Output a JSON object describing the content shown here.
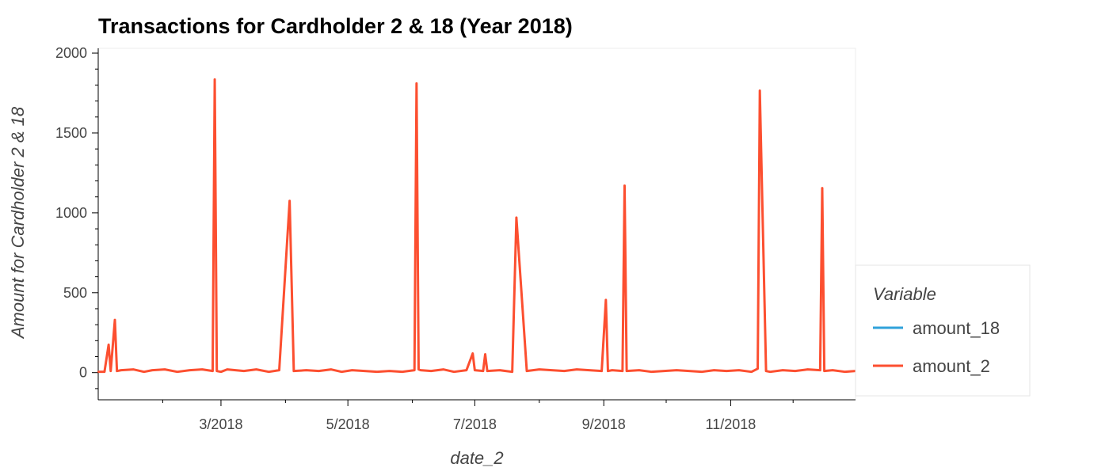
{
  "chart_data": {
    "type": "line",
    "title": "Transactions for Cardholder 2 & 18 (Year 2018)",
    "xlabel": "date_2",
    "ylabel": "Amount for Cardholder 2 & 18",
    "xlim": [
      "2018-01-01",
      "2018-12-31"
    ],
    "ylim": [
      -170,
      2030
    ],
    "x_ticks": [
      {
        "date": "2018-03-01",
        "label": "3/2018"
      },
      {
        "date": "2018-05-01",
        "label": "5/2018"
      },
      {
        "date": "2018-07-01",
        "label": "7/2018"
      },
      {
        "date": "2018-09-01",
        "label": "9/2018"
      },
      {
        "date": "2018-11-01",
        "label": "11/2018"
      }
    ],
    "y_ticks": [
      0,
      500,
      1000,
      1500,
      2000
    ],
    "grid": false,
    "legend": {
      "title": "Variable",
      "position": "right",
      "entries": [
        {
          "label": "amount_18",
          "color": "#30a2da"
        },
        {
          "label": "amount_2",
          "color": "#fc4f30"
        }
      ]
    },
    "series": [
      {
        "name": "amount_18",
        "color": "#30a2da",
        "x": [],
        "y": []
      },
      {
        "name": "amount_2",
        "color": "#fc4f30",
        "x": [
          "2018-01-01",
          "2018-01-04",
          "2018-01-06",
          "2018-01-07",
          "2018-01-09",
          "2018-01-10",
          "2018-01-12",
          "2018-01-18",
          "2018-01-23",
          "2018-01-27",
          "2018-02-02",
          "2018-02-08",
          "2018-02-14",
          "2018-02-20",
          "2018-02-25",
          "2018-02-26",
          "2018-02-27",
          "2018-03-01",
          "2018-03-04",
          "2018-03-08",
          "2018-03-12",
          "2018-03-18",
          "2018-03-24",
          "2018-03-29",
          "2018-04-03",
          "2018-04-05",
          "2018-04-11",
          "2018-04-17",
          "2018-04-23",
          "2018-04-28",
          "2018-05-03",
          "2018-05-09",
          "2018-05-15",
          "2018-05-21",
          "2018-05-27",
          "2018-06-02",
          "2018-06-03",
          "2018-06-04",
          "2018-06-05",
          "2018-06-10",
          "2018-06-16",
          "2018-06-21",
          "2018-06-27",
          "2018-06-30",
          "2018-07-01",
          "2018-07-05",
          "2018-07-06",
          "2018-07-07",
          "2018-07-13",
          "2018-07-19",
          "2018-07-21",
          "2018-07-26",
          "2018-08-01",
          "2018-08-07",
          "2018-08-13",
          "2018-08-19",
          "2018-08-25",
          "2018-08-31",
          "2018-09-02",
          "2018-09-03",
          "2018-09-05",
          "2018-09-10",
          "2018-09-11",
          "2018-09-12",
          "2018-09-18",
          "2018-09-24",
          "2018-09-30",
          "2018-10-06",
          "2018-10-12",
          "2018-10-18",
          "2018-10-24",
          "2018-10-30",
          "2018-11-05",
          "2018-11-11",
          "2018-11-14",
          "2018-11-15",
          "2018-11-18",
          "2018-11-20",
          "2018-11-26",
          "2018-12-02",
          "2018-12-08",
          "2018-12-14",
          "2018-12-15",
          "2018-12-16",
          "2018-12-20",
          "2018-12-26",
          "2018-12-31"
        ],
        "y": [
          5,
          5,
          175,
          10,
          330,
          10,
          15,
          20,
          5,
          15,
          20,
          5,
          15,
          20,
          10,
          1835,
          10,
          5,
          20,
          15,
          10,
          20,
          5,
          15,
          1075,
          10,
          15,
          10,
          20,
          5,
          15,
          10,
          5,
          10,
          5,
          15,
          1810,
          20,
          15,
          10,
          20,
          5,
          15,
          120,
          15,
          10,
          115,
          10,
          15,
          5,
          970,
          10,
          20,
          15,
          10,
          20,
          15,
          10,
          455,
          10,
          15,
          10,
          1170,
          10,
          15,
          5,
          10,
          15,
          10,
          5,
          15,
          10,
          15,
          5,
          25,
          1765,
          10,
          5,
          15,
          10,
          20,
          15,
          1155,
          10,
          15,
          5,
          10
        ]
      }
    ]
  }
}
